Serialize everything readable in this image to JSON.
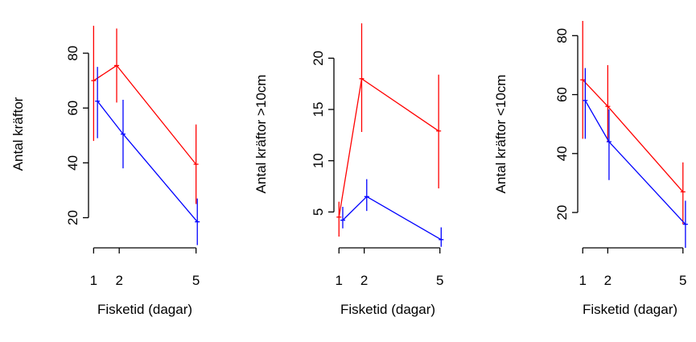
{
  "chart_data": [
    {
      "type": "line",
      "xlabel": "Fisketid (dagar)",
      "ylabel": "Antal kräftor",
      "xlim": [
        0.8,
        5.2
      ],
      "ylim": [
        9,
        95
      ],
      "xticks": [
        1,
        2,
        5
      ],
      "yticks": [
        20,
        40,
        60,
        80
      ],
      "series": [
        {
          "color": "#ff0000",
          "points": [
            {
              "x": 1.0,
              "y": 70,
              "lo": 48,
              "hi": 90
            },
            {
              "x": 1.9,
              "y": 75.5,
              "lo": 62,
              "hi": 89
            },
            {
              "x": 5.0,
              "y": 39.5,
              "lo": 25,
              "hi": 54
            }
          ]
        },
        {
          "color": "#0000ff",
          "points": [
            {
              "x": 1.15,
              "y": 62.5,
              "lo": 49,
              "hi": 75
            },
            {
              "x": 2.15,
              "y": 50.5,
              "lo": 38,
              "hi": 63
            },
            {
              "x": 5.05,
              "y": 18.5,
              "lo": 10,
              "hi": 27
            }
          ]
        }
      ]
    },
    {
      "type": "line",
      "xlabel": "Fisketid (dagar)",
      "ylabel": "Antal kräftor >10cm",
      "xlim": [
        0.8,
        5.2
      ],
      "ylim": [
        1.5,
        24.5
      ],
      "xticks": [
        1,
        2,
        5
      ],
      "yticks": [
        5,
        10,
        15,
        20
      ],
      "series": [
        {
          "color": "#ff0000",
          "points": [
            {
              "x": 1.0,
              "y": 4.5,
              "lo": 2.6,
              "hi": 6.0
            },
            {
              "x": 1.9,
              "y": 18.0,
              "lo": 12.8,
              "hi": 23.4
            },
            {
              "x": 4.95,
              "y": 12.9,
              "lo": 7.3,
              "hi": 18.4
            }
          ]
        },
        {
          "color": "#0000ff",
          "points": [
            {
              "x": 1.15,
              "y": 4.2,
              "lo": 3.4,
              "hi": 5.5
            },
            {
              "x": 2.1,
              "y": 6.5,
              "lo": 5.1,
              "hi": 8.2
            },
            {
              "x": 5.05,
              "y": 2.3,
              "lo": 1.6,
              "hi": 3.5
            }
          ]
        }
      ]
    },
    {
      "type": "line",
      "xlabel": "Fisketid (dagar)",
      "ylabel": "Antal kräftor <10cm",
      "xlim": [
        0.8,
        5.2
      ],
      "ylim": [
        8,
        88
      ],
      "xticks": [
        1,
        2,
        5
      ],
      "yticks": [
        20,
        40,
        60,
        80
      ],
      "series": [
        {
          "color": "#ff0000",
          "points": [
            {
              "x": 1.0,
              "y": 65,
              "lo": 45,
              "hi": 85
            },
            {
              "x": 2.0,
              "y": 56,
              "lo": 44,
              "hi": 70
            },
            {
              "x": 5.0,
              "y": 27,
              "lo": 16,
              "hi": 37
            }
          ]
        },
        {
          "color": "#0000ff",
          "points": [
            {
              "x": 1.1,
              "y": 58,
              "lo": 45,
              "hi": 69
            },
            {
              "x": 2.05,
              "y": 44,
              "lo": 31,
              "hi": 55
            },
            {
              "x": 5.1,
              "y": 16,
              "lo": 8,
              "hi": 24
            }
          ]
        }
      ]
    }
  ]
}
